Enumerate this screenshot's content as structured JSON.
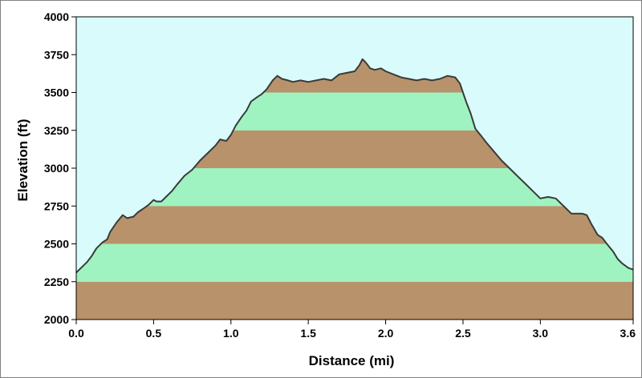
{
  "chart_data": {
    "type": "area",
    "title": "",
    "xlabel": "Distance  (mi)",
    "ylabel": "Elevation (ft)",
    "xlim": [
      0,
      3.6
    ],
    "ylim": [
      2000,
      4000
    ],
    "x_ticks": [
      0.0,
      0.5,
      1.0,
      1.5,
      2.0,
      2.5,
      3.0,
      3.6
    ],
    "x_tick_labels": [
      "0.0",
      "0.5",
      "1.0",
      "1.5",
      "2.0",
      "2.5",
      "3.0",
      "3.6"
    ],
    "y_ticks": [
      2000,
      2250,
      2500,
      2750,
      3000,
      3250,
      3500,
      3750,
      4000
    ],
    "y_tick_labels": [
      "2000",
      "2250",
      "2500",
      "2750",
      "3000",
      "3250",
      "3500",
      "3750",
      "4000"
    ],
    "grid": false,
    "colors": {
      "sky": "#d9fbfb",
      "band_brown": "#b8926a",
      "band_green": "#9ff3c0",
      "profile_line": "#3a3a3a"
    },
    "series": [
      {
        "x": [
          0.0,
          0.03,
          0.07,
          0.1,
          0.13,
          0.17,
          0.2,
          0.22,
          0.26,
          0.3,
          0.33,
          0.37,
          0.4,
          0.43,
          0.47,
          0.5,
          0.52,
          0.55,
          0.58,
          0.62,
          0.65,
          0.7,
          0.75,
          0.8,
          0.85,
          0.9,
          0.93,
          0.97,
          1.0,
          1.03,
          1.07,
          1.1,
          1.13,
          1.17,
          1.2,
          1.23,
          1.27,
          1.3,
          1.33,
          1.37,
          1.4,
          1.45,
          1.5,
          1.55,
          1.6,
          1.65,
          1.7,
          1.75,
          1.8,
          1.83,
          1.85,
          1.87,
          1.9,
          1.93,
          1.97,
          2.0,
          2.05,
          2.1,
          2.15,
          2.2,
          2.25,
          2.3,
          2.35,
          2.4,
          2.45,
          2.48,
          2.5,
          2.52,
          2.55,
          2.58,
          2.62,
          2.65,
          2.7,
          2.75,
          2.8,
          2.85,
          2.9,
          2.95,
          3.0,
          3.05,
          3.1,
          3.13,
          3.17,
          3.2,
          3.23,
          3.27,
          3.3,
          3.33,
          3.37,
          3.4,
          3.43,
          3.47,
          3.5,
          3.53,
          3.57,
          3.6
        ],
        "y": [
          2310,
          2340,
          2380,
          2420,
          2470,
          2510,
          2530,
          2580,
          2640,
          2690,
          2670,
          2680,
          2710,
          2730,
          2760,
          2790,
          2780,
          2780,
          2810,
          2850,
          2890,
          2950,
          2990,
          3050,
          3100,
          3150,
          3190,
          3180,
          3220,
          3280,
          3340,
          3380,
          3440,
          3470,
          3490,
          3520,
          3580,
          3610,
          3590,
          3580,
          3570,
          3580,
          3570,
          3580,
          3590,
          3580,
          3620,
          3630,
          3640,
          3680,
          3720,
          3700,
          3660,
          3650,
          3660,
          3640,
          3620,
          3600,
          3590,
          3580,
          3590,
          3580,
          3590,
          3610,
          3600,
          3560,
          3500,
          3440,
          3360,
          3260,
          3210,
          3170,
          3110,
          3050,
          3000,
          2950,
          2900,
          2850,
          2800,
          2810,
          2800,
          2770,
          2730,
          2700,
          2700,
          2700,
          2690,
          2630,
          2560,
          2540,
          2500,
          2450,
          2400,
          2370,
          2340,
          2330
        ]
      }
    ]
  }
}
